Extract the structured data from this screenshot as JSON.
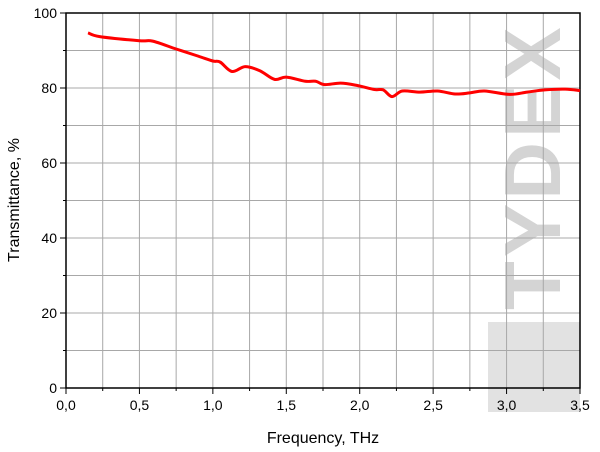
{
  "chart_data": {
    "type": "line",
    "title": "",
    "xlabel": "Frequency, THz",
    "ylabel": "Transmittance, %",
    "xlim": [
      0,
      3.5
    ],
    "ylim": [
      0,
      100
    ],
    "x_ticks": [
      "0,0",
      "0,5",
      "1,0",
      "1,5",
      "2,0",
      "2,5",
      "3,0",
      "3,5"
    ],
    "x_tick_values": [
      0,
      0.5,
      1.0,
      1.5,
      2.0,
      2.5,
      3.0,
      3.5
    ],
    "y_ticks": [
      "0",
      "20",
      "40",
      "60",
      "80",
      "100"
    ],
    "y_tick_values": [
      0,
      20,
      40,
      60,
      80,
      100
    ],
    "grid": true,
    "line_color": "#ff0000",
    "series": [
      {
        "x": [
          0.15,
          0.23,
          0.5,
          0.59,
          0.75,
          0.9,
          1.0,
          1.05,
          1.13,
          1.22,
          1.32,
          1.42,
          1.5,
          1.63,
          1.7,
          1.76,
          1.87,
          1.98,
          2.1,
          2.16,
          2.22,
          2.29,
          2.41,
          2.53,
          2.65,
          2.75,
          2.85,
          3.02,
          3.14,
          3.26,
          3.4,
          3.5
        ],
        "y": [
          94.7,
          93.7,
          92.6,
          92.5,
          90.4,
          88.5,
          87.2,
          86.9,
          84.4,
          85.7,
          84.6,
          82.3,
          82.9,
          81.8,
          81.8,
          80.9,
          81.3,
          80.7,
          79.6,
          79.5,
          77.7,
          79.2,
          78.9,
          79.2,
          78.4,
          78.7,
          79.2,
          78.3,
          78.9,
          79.5,
          79.7,
          79.3
        ]
      }
    ]
  },
  "watermark": {
    "text": "TYDEX"
  }
}
